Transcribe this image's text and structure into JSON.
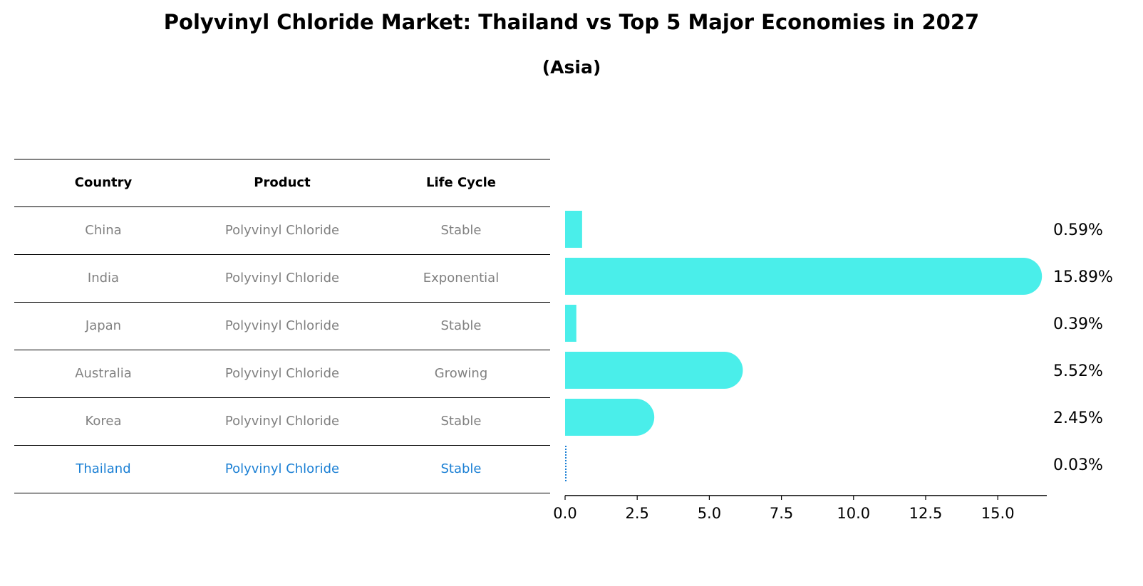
{
  "title": "Polyvinyl Chloride Market: Thailand vs Top 5 Major Economies in 2027",
  "subtitle": "(Asia)",
  "table": {
    "headers": [
      "Country",
      "Product",
      "Life Cycle"
    ],
    "rows": [
      {
        "country": "China",
        "product": "Polyvinyl Chloride",
        "life_cycle": "Stable"
      },
      {
        "country": "India",
        "product": "Polyvinyl Chloride",
        "life_cycle": "Exponential"
      },
      {
        "country": "Japan",
        "product": "Polyvinyl Chloride",
        "life_cycle": "Stable"
      },
      {
        "country": "Australia",
        "product": "Polyvinyl Chloride",
        "life_cycle": "Growing"
      },
      {
        "country": "Korea",
        "product": "Polyvinyl Chloride",
        "life_cycle": "Stable"
      },
      {
        "country": "Thailand",
        "product": "Polyvinyl Chloride",
        "life_cycle": "Stable"
      }
    ]
  },
  "colors": {
    "bar": "#4aeeea",
    "highlight": "#1a7fd4",
    "muted_text": "#808080"
  },
  "chart_data": {
    "type": "bar",
    "orientation": "horizontal",
    "categories": [
      "China",
      "India",
      "Japan",
      "Australia",
      "Korea",
      "Thailand"
    ],
    "values": [
      0.59,
      15.89,
      0.39,
      5.52,
      2.45,
      0.03
    ],
    "value_labels": [
      "0.59%",
      "15.89%",
      "0.39%",
      "5.52%",
      "2.45%",
      "0.03%"
    ],
    "highlight": "Thailand",
    "xlim": [
      0,
      16.7
    ],
    "xticks": [
      0.0,
      2.5,
      5.0,
      7.5,
      10.0,
      12.5,
      15.0
    ],
    "xtick_labels": [
      "0.0",
      "2.5",
      "5.0",
      "7.5",
      "10.0",
      "12.5",
      "15.0"
    ],
    "xlabel": "",
    "ylabel": ""
  }
}
